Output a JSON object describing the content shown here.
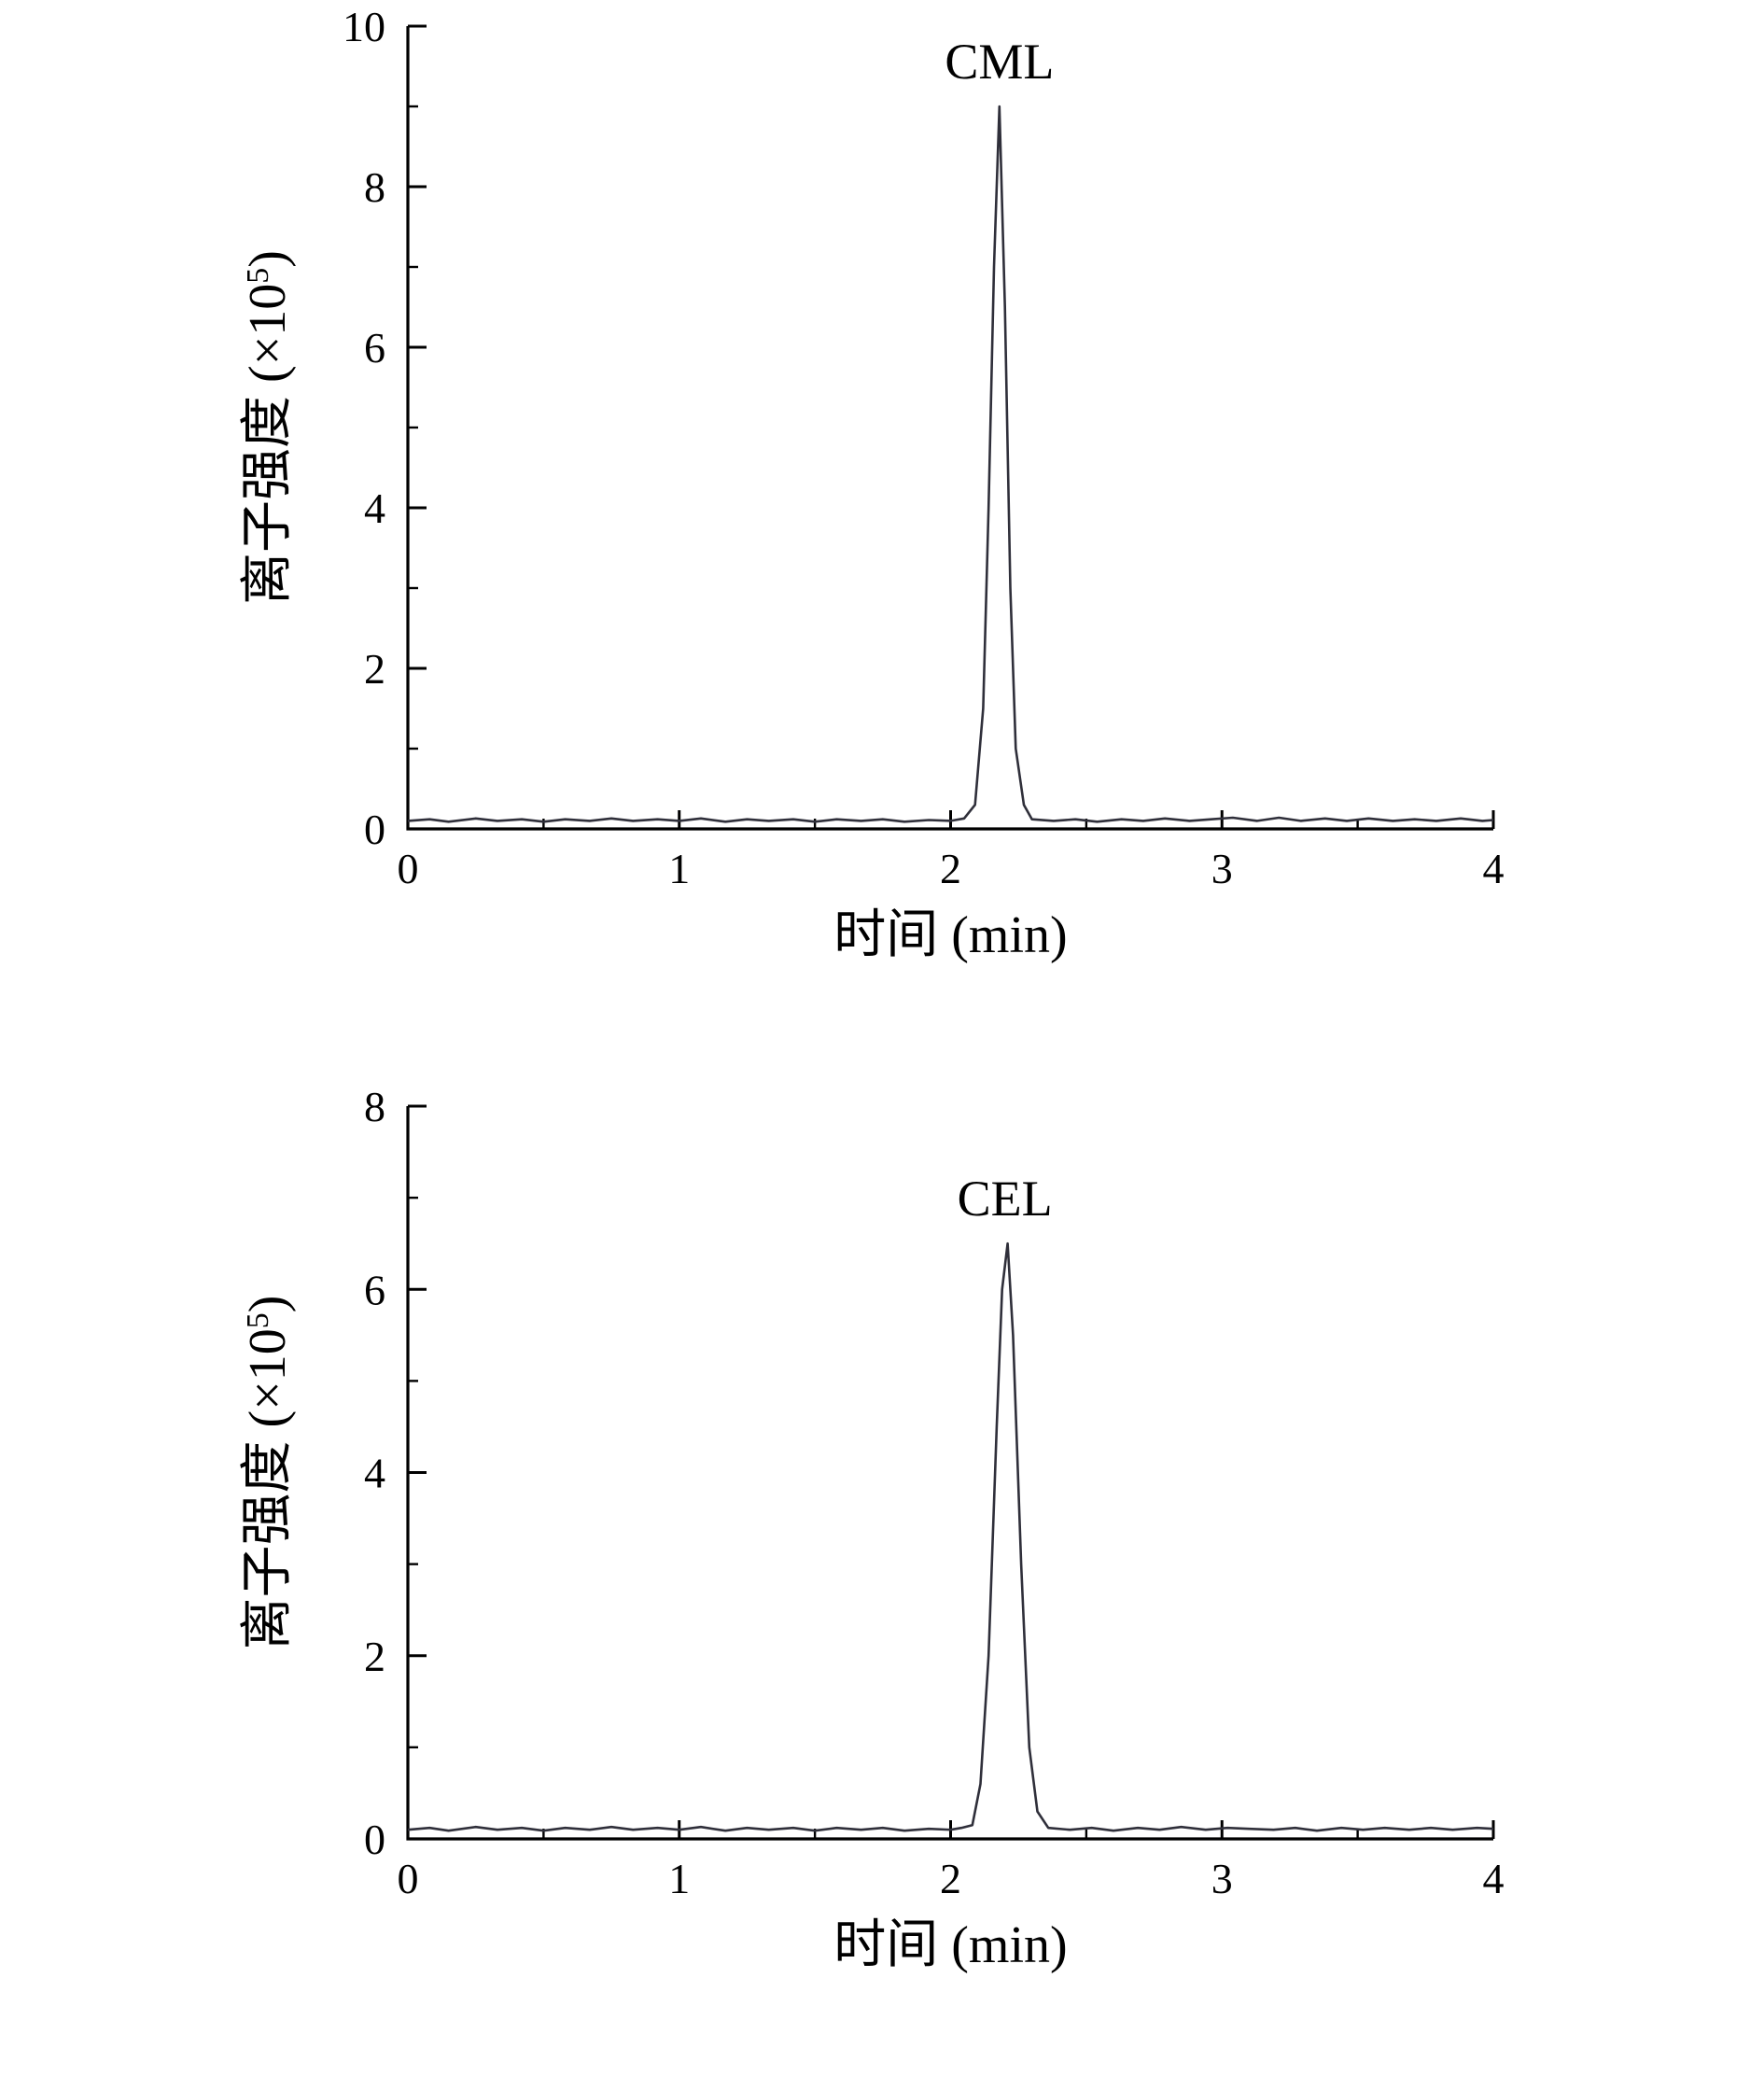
{
  "page": {
    "background": "#ffffff"
  },
  "chart_data": [
    {
      "type": "line",
      "title": "",
      "xlabel": "时间 (min)",
      "ylabel": "离子强度 (×10⁵)",
      "ylabel_parts": {
        "main": "离子强度 (×10",
        "sup": "5",
        "close": ")"
      },
      "xlim": [
        0,
        4
      ],
      "ylim": [
        0,
        10
      ],
      "xticks": [
        0,
        1,
        2,
        3,
        4
      ],
      "yticks": [
        0,
        2,
        4,
        6,
        8,
        10
      ],
      "xminor_step": 0.5,
      "yminor_step": 1,
      "grid": false,
      "line_color": "#2f2f3a",
      "annotation": {
        "label": "CML",
        "x": 2.18,
        "y": 9.0
      },
      "series": [
        {
          "name": "CML",
          "points": [
            [
              0,
              0.1
            ],
            [
              0.08,
              0.12
            ],
            [
              0.15,
              0.09
            ],
            [
              0.25,
              0.13
            ],
            [
              0.33,
              0.1
            ],
            [
              0.42,
              0.12
            ],
            [
              0.5,
              0.09
            ],
            [
              0.58,
              0.12
            ],
            [
              0.67,
              0.1
            ],
            [
              0.75,
              0.13
            ],
            [
              0.83,
              0.1
            ],
            [
              0.92,
              0.12
            ],
            [
              1.0,
              0.1
            ],
            [
              1.08,
              0.13
            ],
            [
              1.17,
              0.09
            ],
            [
              1.25,
              0.12
            ],
            [
              1.33,
              0.1
            ],
            [
              1.42,
              0.12
            ],
            [
              1.5,
              0.09
            ],
            [
              1.58,
              0.12
            ],
            [
              1.67,
              0.1
            ],
            [
              1.75,
              0.12
            ],
            [
              1.83,
              0.09
            ],
            [
              1.92,
              0.11
            ],
            [
              2.0,
              0.1
            ],
            [
              2.05,
              0.13
            ],
            [
              2.09,
              0.3
            ],
            [
              2.12,
              1.5
            ],
            [
              2.14,
              4.0
            ],
            [
              2.16,
              7.0
            ],
            [
              2.18,
              9.0
            ],
            [
              2.2,
              6.5
            ],
            [
              2.22,
              3.0
            ],
            [
              2.24,
              1.0
            ],
            [
              2.27,
              0.3
            ],
            [
              2.3,
              0.12
            ],
            [
              2.38,
              0.1
            ],
            [
              2.46,
              0.12
            ],
            [
              2.54,
              0.09
            ],
            [
              2.63,
              0.12
            ],
            [
              2.71,
              0.1
            ],
            [
              2.79,
              0.13
            ],
            [
              2.88,
              0.1
            ],
            [
              2.96,
              0.12
            ],
            [
              3.04,
              0.14
            ],
            [
              3.13,
              0.1
            ],
            [
              3.21,
              0.14
            ],
            [
              3.29,
              0.1
            ],
            [
              3.38,
              0.13
            ],
            [
              3.46,
              0.1
            ],
            [
              3.54,
              0.13
            ],
            [
              3.63,
              0.1
            ],
            [
              3.71,
              0.12
            ],
            [
              3.79,
              0.1
            ],
            [
              3.88,
              0.13
            ],
            [
              3.96,
              0.1
            ],
            [
              4.0,
              0.11
            ]
          ]
        }
      ]
    },
    {
      "type": "line",
      "title": "",
      "xlabel": "时间 (min)",
      "ylabel": "离子强度 (×10⁵)",
      "ylabel_parts": {
        "main": "离子强度 (×10",
        "sup": "5",
        "close": ")"
      },
      "xlim": [
        0,
        4
      ],
      "ylim": [
        0,
        8
      ],
      "xticks": [
        0,
        1,
        2,
        3,
        4
      ],
      "yticks": [
        0,
        2,
        4,
        6,
        8
      ],
      "xminor_step": 0.5,
      "yminor_step": 1,
      "grid": false,
      "line_color": "#2f2f3a",
      "annotation": {
        "label": "CEL",
        "x": 2.2,
        "y": 6.5
      },
      "series": [
        {
          "name": "CEL",
          "points": [
            [
              0,
              0.1
            ],
            [
              0.08,
              0.12
            ],
            [
              0.15,
              0.09
            ],
            [
              0.25,
              0.13
            ],
            [
              0.33,
              0.1
            ],
            [
              0.42,
              0.12
            ],
            [
              0.5,
              0.09
            ],
            [
              0.58,
              0.12
            ],
            [
              0.67,
              0.1
            ],
            [
              0.75,
              0.13
            ],
            [
              0.83,
              0.1
            ],
            [
              0.92,
              0.12
            ],
            [
              1.0,
              0.1
            ],
            [
              1.08,
              0.13
            ],
            [
              1.17,
              0.09
            ],
            [
              1.25,
              0.12
            ],
            [
              1.33,
              0.1
            ],
            [
              1.42,
              0.12
            ],
            [
              1.5,
              0.09
            ],
            [
              1.58,
              0.12
            ],
            [
              1.67,
              0.1
            ],
            [
              1.75,
              0.12
            ],
            [
              1.83,
              0.09
            ],
            [
              1.92,
              0.11
            ],
            [
              2.0,
              0.1
            ],
            [
              2.04,
              0.12
            ],
            [
              2.08,
              0.15
            ],
            [
              2.11,
              0.6
            ],
            [
              2.14,
              2.0
            ],
            [
              2.17,
              4.5
            ],
            [
              2.19,
              6.0
            ],
            [
              2.21,
              6.5
            ],
            [
              2.23,
              5.5
            ],
            [
              2.26,
              3.0
            ],
            [
              2.29,
              1.0
            ],
            [
              2.32,
              0.3
            ],
            [
              2.36,
              0.12
            ],
            [
              2.44,
              0.1
            ],
            [
              2.52,
              0.12
            ],
            [
              2.6,
              0.09
            ],
            [
              2.69,
              0.12
            ],
            [
              2.77,
              0.1
            ],
            [
              2.85,
              0.13
            ],
            [
              2.94,
              0.1
            ],
            [
              3.02,
              0.12
            ],
            [
              3.1,
              0.11
            ],
            [
              3.19,
              0.1
            ],
            [
              3.27,
              0.12
            ],
            [
              3.35,
              0.09
            ],
            [
              3.44,
              0.12
            ],
            [
              3.52,
              0.1
            ],
            [
              3.6,
              0.12
            ],
            [
              3.69,
              0.1
            ],
            [
              3.77,
              0.12
            ],
            [
              3.85,
              0.1
            ],
            [
              3.94,
              0.12
            ],
            [
              4.0,
              0.11
            ]
          ]
        }
      ]
    }
  ]
}
